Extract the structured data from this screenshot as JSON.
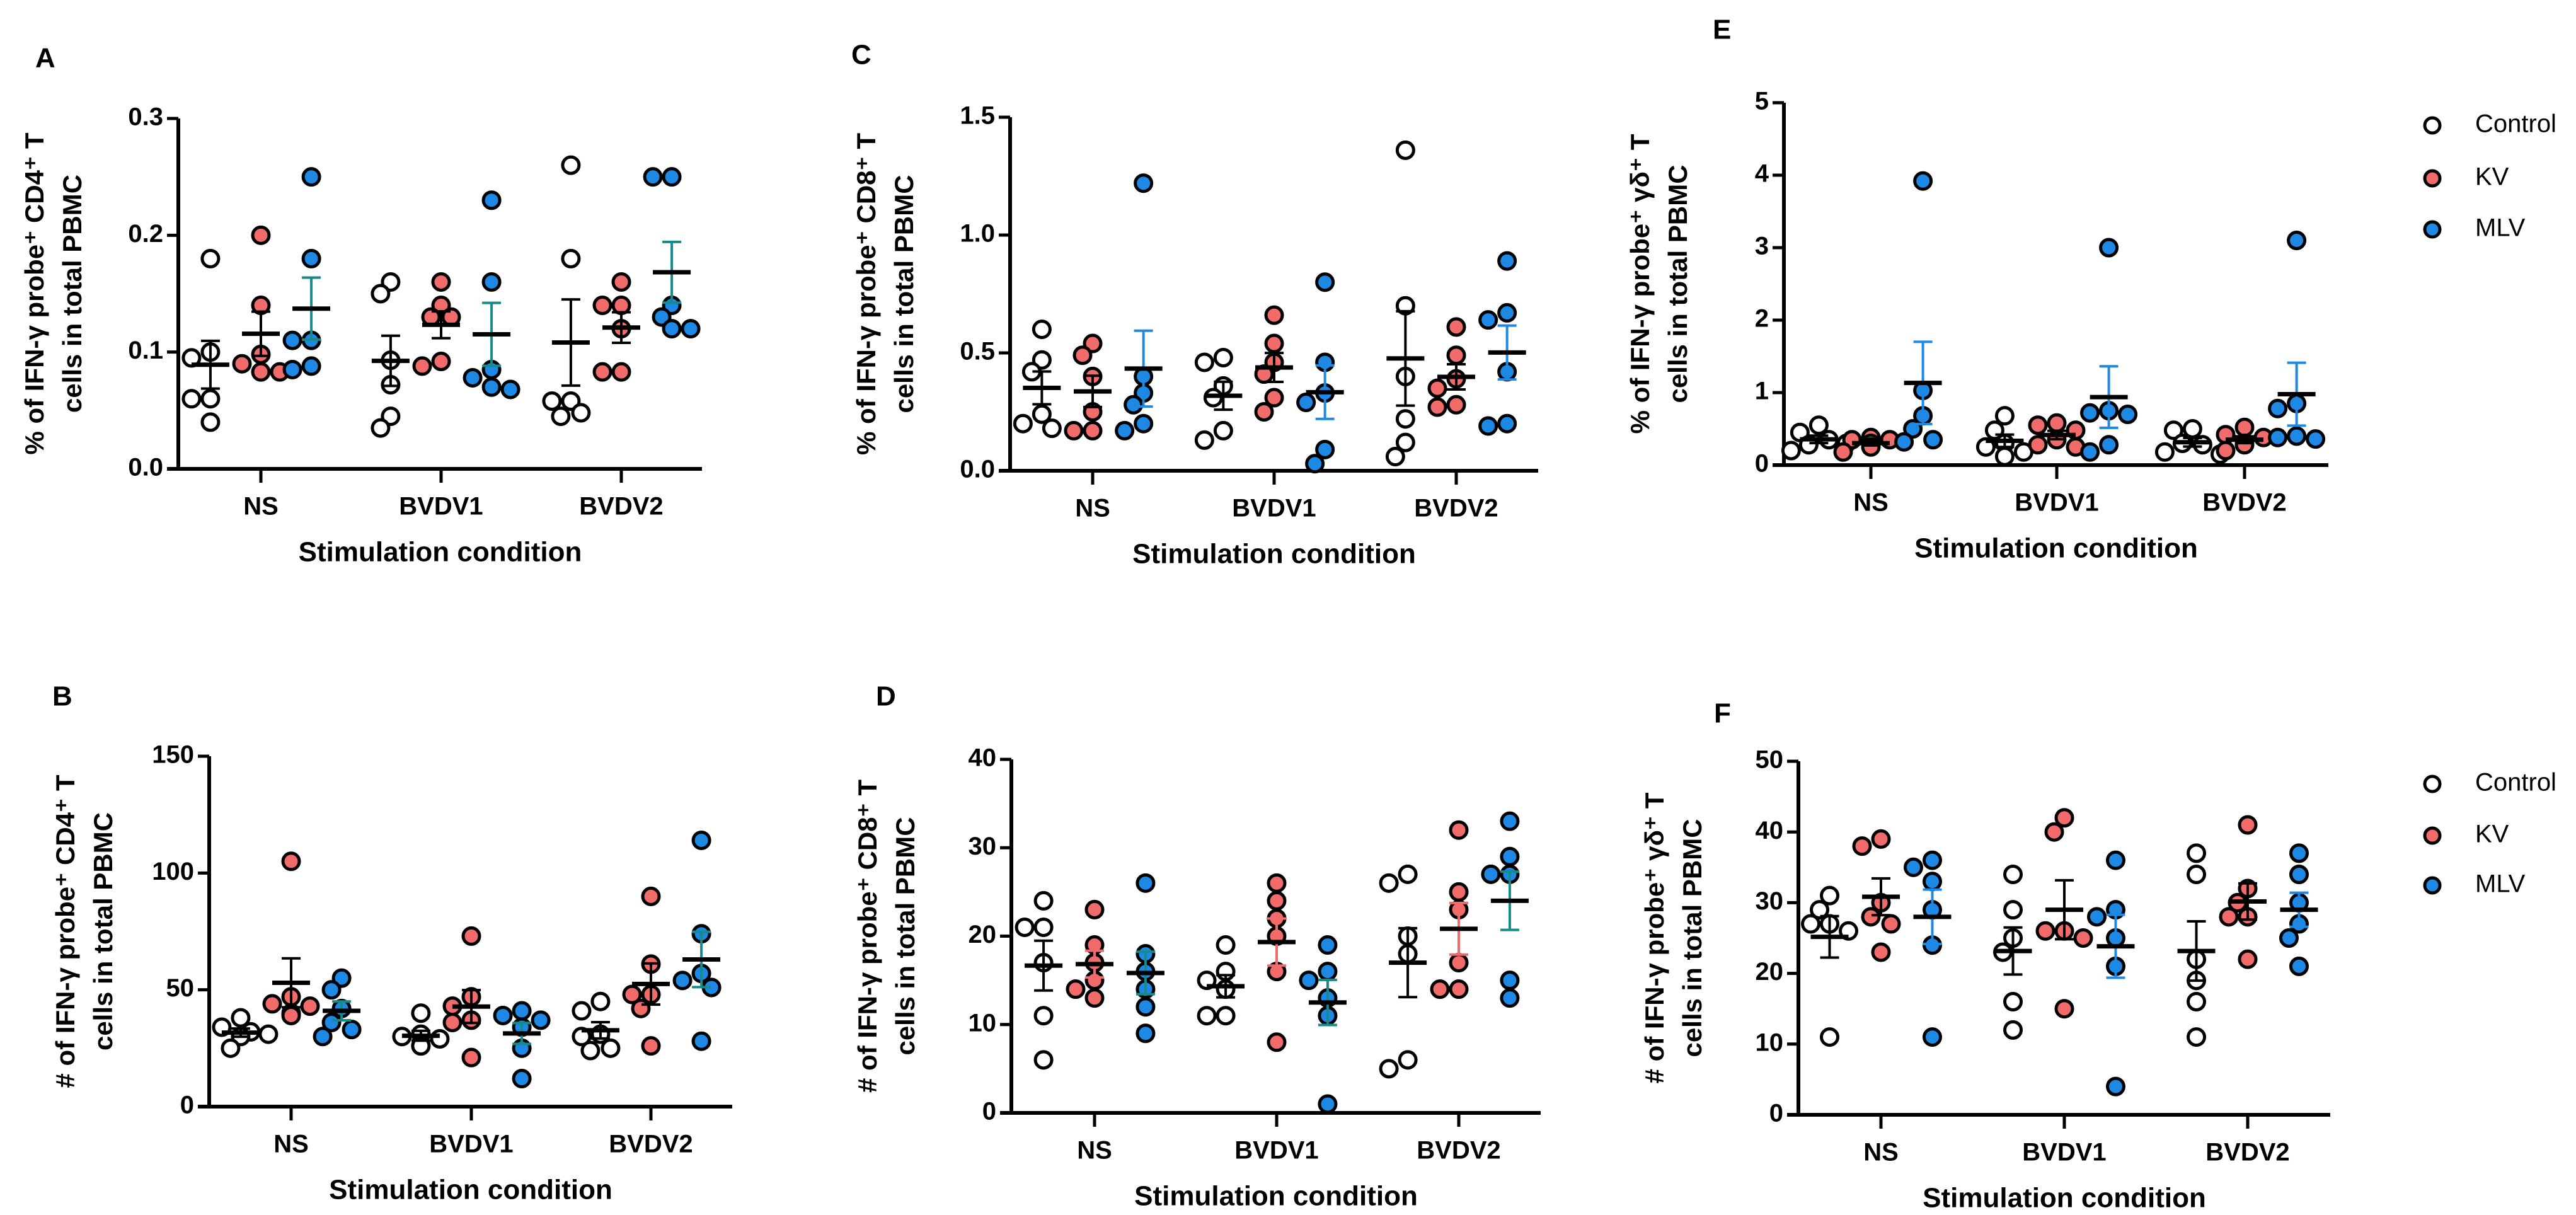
{
  "colors": {
    "Control": "#ffffff",
    "KV": "#f26b6b",
    "MLV": "#1e88e5",
    "outline": "#000000",
    "teal": "#178a8a"
  },
  "legend": [
    "Control",
    "KV",
    "MLV"
  ],
  "chart_data": [
    {
      "type": "scatter",
      "panel": "A",
      "ylabel": [
        "% of IFN-γ probe⁺ CD4⁺ T",
        "cells in total PBMC"
      ],
      "xlabel": "Stimulation condition",
      "categories": [
        "NS",
        "BVDV1",
        "BVDV2"
      ],
      "ylim": [
        0,
        0.3
      ],
      "yticks": [
        "0.0",
        "0.1",
        "0.2",
        "0.3"
      ],
      "errorbar_colors": {
        "Control": "#000000",
        "KV": "#000000",
        "MLV": "#178a8a"
      },
      "series": [
        {
          "name": "Control",
          "values": [
            [
              0.18,
              0.1,
              0.095,
              0.06,
              0.06,
              0.04
            ],
            [
              0.16,
              0.15,
              0.093,
              0.072,
              0.045,
              0.035
            ],
            [
              0.26,
              0.18,
              0.058,
              0.058,
              0.048,
              0.045
            ]
          ]
        },
        {
          "name": "KV",
          "values": [
            [
              0.2,
              0.14,
              0.098,
              0.09,
              0.083,
              0.083
            ],
            [
              0.16,
              0.14,
              0.13,
              0.13,
              0.092,
              0.088
            ],
            [
              0.16,
              0.14,
              0.14,
              0.12,
              0.083,
              0.083
            ]
          ]
        },
        {
          "name": "MLV",
          "values": [
            [
              0.25,
              0.18,
              0.11,
              0.11,
              0.088,
              0.085
            ],
            [
              0.23,
              0.16,
              0.085,
              0.078,
              0.07,
              0.068
            ],
            [
              0.25,
              0.25,
              0.14,
              0.13,
              0.12,
              0.12
            ]
          ]
        }
      ]
    },
    {
      "type": "scatter",
      "panel": "B",
      "ylabel": [
        "# of IFN-γ probe⁺ CD4⁺ T",
        "cells in total PBMC"
      ],
      "xlabel": "Stimulation condition",
      "categories": [
        "NS",
        "BVDV1",
        "BVDV2"
      ],
      "ylim": [
        0,
        150
      ],
      "yticks": [
        "0",
        "50",
        "100",
        "150"
      ],
      "errorbar_colors": {
        "Control": "#000000",
        "KV": "#000000",
        "MLV": "#178a8a"
      },
      "series": [
        {
          "name": "Control",
          "values": [
            [
              38,
              34,
              32,
              31,
              30,
              25
            ],
            [
              40,
              31,
              30,
              29,
              26,
              26
            ],
            [
              45,
              41,
              31,
              30,
              25,
              24
            ]
          ]
        },
        {
          "name": "KV",
          "values": [
            [
              105,
              47,
              44,
              43,
              40,
              39
            ],
            [
              73,
              47,
              43,
              37,
              36,
              21
            ],
            [
              90,
              61,
              48,
              48,
              42,
              26
            ]
          ]
        },
        {
          "name": "MLV",
          "values": [
            [
              55,
              50,
              42,
              36,
              33,
              30
            ],
            [
              41,
              39,
              37,
              34,
              25,
              12
            ],
            [
              114,
              74,
              57,
              54,
              51,
              28
            ]
          ]
        }
      ]
    },
    {
      "type": "scatter",
      "panel": "C",
      "ylabel": [
        "% of IFN-γ probe⁺ CD8⁺ T",
        "cells in total PBMC"
      ],
      "xlabel": "Stimulation condition",
      "categories": [
        "NS",
        "BVDV1",
        "BVDV2"
      ],
      "ylim": [
        0,
        1.5
      ],
      "yticks": [
        "0.0",
        "0.5",
        "1.0",
        "1.5"
      ],
      "errorbar_colors": {
        "Control": "#000000",
        "KV": "#000000",
        "MLV": "#1e88e5"
      },
      "series": [
        {
          "name": "Control",
          "values": [
            [
              0.6,
              0.47,
              0.42,
              0.24,
              0.2,
              0.18
            ],
            [
              0.48,
              0.46,
              0.36,
              0.31,
              0.17,
              0.13
            ],
            [
              1.36,
              0.7,
              0.4,
              0.22,
              0.12,
              0.06
            ]
          ]
        },
        {
          "name": "KV",
          "values": [
            [
              0.54,
              0.49,
              0.4,
              0.25,
              0.17,
              0.17
            ],
            [
              0.66,
              0.54,
              0.46,
              0.41,
              0.31,
              0.25
            ],
            [
              0.61,
              0.49,
              0.39,
              0.35,
              0.28,
              0.27
            ]
          ]
        },
        {
          "name": "MLV",
          "values": [
            [
              1.22,
              0.4,
              0.33,
              0.28,
              0.2,
              0.17
            ],
            [
              0.8,
              0.46,
              0.33,
              0.29,
              0.09,
              0.03
            ],
            [
              0.89,
              0.67,
              0.64,
              0.42,
              0.2,
              0.19
            ]
          ]
        }
      ]
    },
    {
      "type": "scatter",
      "panel": "D",
      "ylabel": [
        "# of IFN-γ probe⁺ CD8⁺ T",
        "cells in total PBMC"
      ],
      "xlabel": "Stimulation condition",
      "categories": [
        "NS",
        "BVDV1",
        "BVDV2"
      ],
      "ylim": [
        0,
        40
      ],
      "yticks": [
        "0",
        "10",
        "20",
        "30",
        "40"
      ],
      "errorbar_colors": {
        "Control": "#000000",
        "KV": "#f26b6b",
        "MLV": "#178a8a"
      },
      "series": [
        {
          "name": "Control",
          "values": [
            [
              24,
              21,
              21,
              17,
              11,
              6
            ],
            [
              19,
              16,
              15,
              14,
              11,
              11
            ],
            [
              27,
              26,
              20,
              18,
              6,
              5
            ]
          ]
        },
        {
          "name": "KV",
          "values": [
            [
              23,
              19,
              17,
              15,
              14,
              13
            ],
            [
              26,
              24,
              22,
              20,
              16,
              8
            ],
            [
              32,
              25,
              23,
              17,
              14,
              14
            ]
          ]
        },
        {
          "name": "MLV",
          "values": [
            [
              26,
              18,
              16,
              14,
              12,
              9
            ],
            [
              19,
              16,
              15,
              13,
              11,
              1
            ],
            [
              33,
              29,
              27,
              27,
              15,
              13
            ]
          ]
        }
      ]
    },
    {
      "type": "scatter",
      "panel": "E",
      "ylabel": [
        "% of IFN-γ probe⁺ γδ⁺ T",
        "cells in total PBMC"
      ],
      "xlabel": "Stimulation condition",
      "categories": [
        "NS",
        "BVDV1",
        "BVDV2"
      ],
      "ylim": [
        0,
        5
      ],
      "yticks": [
        "0",
        "1",
        "2",
        "3",
        "4",
        "5"
      ],
      "legend": "right",
      "errorbar_colors": {
        "Control": "#000000",
        "KV": "#000000",
        "MLV": "#1e88e5"
      },
      "series": [
        {
          "name": "Control",
          "values": [
            [
              0.55,
              0.45,
              0.35,
              0.3,
              0.28,
              0.2
            ],
            [
              0.68,
              0.48,
              0.3,
              0.25,
              0.18,
              0.12
            ],
            [
              0.5,
              0.48,
              0.3,
              0.28,
              0.18,
              0.15
            ]
          ]
        },
        {
          "name": "KV",
          "values": [
            [
              0.38,
              0.35,
              0.35,
              0.3,
              0.25,
              0.18
            ],
            [
              0.58,
              0.55,
              0.48,
              0.35,
              0.28,
              0.25
            ],
            [
              0.52,
              0.42,
              0.38,
              0.3,
              0.28,
              0.2
            ]
          ]
        },
        {
          "name": "MLV",
          "values": [
            [
              3.92,
              1.03,
              0.68,
              0.5,
              0.35,
              0.32
            ],
            [
              3.0,
              0.75,
              0.72,
              0.7,
              0.28,
              0.18
            ],
            [
              3.1,
              0.85,
              0.78,
              0.4,
              0.38,
              0.36
            ]
          ]
        }
      ]
    },
    {
      "type": "scatter",
      "panel": "F",
      "ylabel": [
        "# of IFN-γ probe⁺ γδ⁺ T",
        "cells in total PBMC"
      ],
      "xlabel": "Stimulation condition",
      "categories": [
        "NS",
        "BVDV1",
        "BVDV2"
      ],
      "ylim": [
        0,
        50
      ],
      "yticks": [
        "0",
        "10",
        "20",
        "30",
        "40",
        "50"
      ],
      "legend": "right",
      "errorbar_colors": {
        "Control": "#000000",
        "KV": "#000000",
        "MLV": "#1e88e5"
      },
      "series": [
        {
          "name": "Control",
          "values": [
            [
              31,
              29,
              27,
              27,
              26,
              11
            ],
            [
              34,
              29,
              25,
              23,
              16,
              12
            ],
            [
              37,
              34,
              22,
              19,
              16,
              11
            ]
          ]
        },
        {
          "name": "KV",
          "values": [
            [
              39,
              38,
              30,
              28,
              27,
              23
            ],
            [
              42,
              40,
              26,
              26,
              25,
              15
            ],
            [
              41,
              32,
              30,
              28,
              28,
              22
            ]
          ]
        },
        {
          "name": "MLV",
          "values": [
            [
              36,
              35,
              33,
              29,
              24,
              11
            ],
            [
              36,
              29,
              28,
              25,
              21,
              4
            ],
            [
              37,
              34,
              30,
              27,
              25,
              21
            ]
          ]
        }
      ]
    }
  ]
}
